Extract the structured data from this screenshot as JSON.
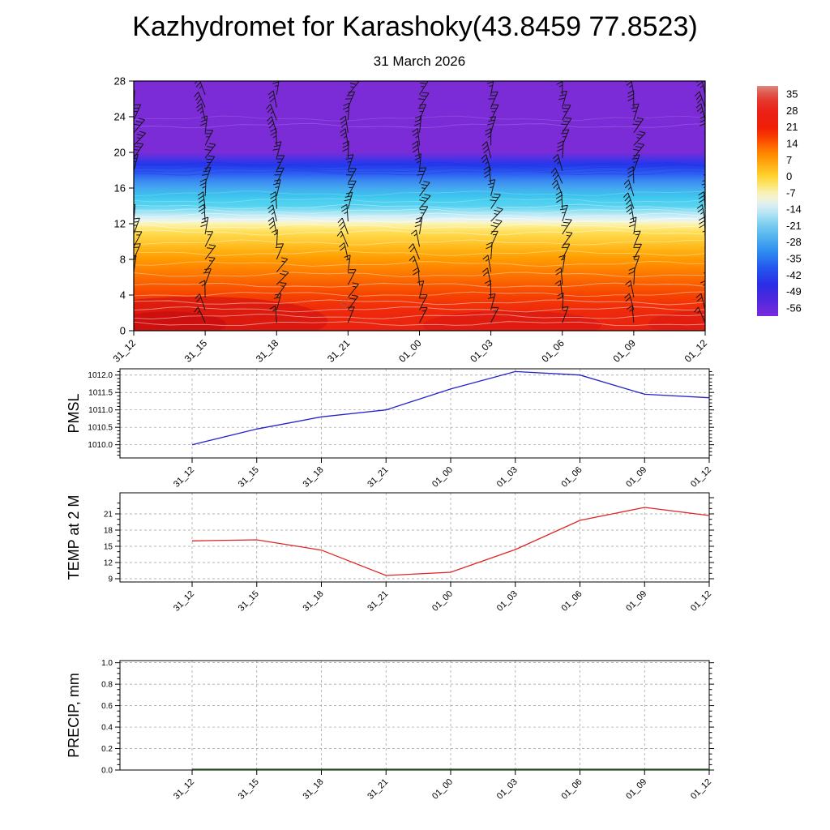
{
  "title": "Kazhydromet for Karashoky(43.8459 77.8523)",
  "subtitle": "31 March 2026",
  "time_labels": [
    "31_12",
    "31_15",
    "31_18",
    "31_21",
    "01_00",
    "01_03",
    "01_06",
    "01_09",
    "01_12"
  ],
  "chart_data": [
    {
      "type": "heatmap",
      "name": "temperature-height-cross-section",
      "subtitle": "31 March 2026",
      "x_categories": [
        "31_12",
        "31_15",
        "31_18",
        "31_21",
        "01_00",
        "01_03",
        "01_06",
        "01_09",
        "01_12"
      ],
      "y_ticks": [
        0,
        4,
        8,
        12,
        16,
        20,
        24,
        28
      ],
      "ylim": [
        0,
        28
      ],
      "overlay": "wind-barb columns at each time step, westerly flow",
      "profile_heights_km": [
        0,
        2,
        4,
        6,
        8,
        10,
        12,
        13,
        14,
        16,
        18,
        19,
        20,
        28
      ],
      "profile_temps_c": [
        27,
        23,
        17,
        11,
        5,
        -2,
        -8,
        -13,
        -18,
        -28,
        -42,
        -50,
        -56,
        -56
      ],
      "gradient_stops": [
        [
          0,
          "#7B2CD6"
        ],
        [
          0.284,
          "#7B2CD6"
        ],
        [
          0.301,
          "#5F30DE"
        ],
        [
          0.318,
          "#3C34E8"
        ],
        [
          0.336,
          "#2438EC"
        ],
        [
          0.356,
          "#2A52F0"
        ],
        [
          0.375,
          "#2E62F2"
        ],
        [
          0.393,
          "#3780F2"
        ],
        [
          0.411,
          "#3F96F1"
        ],
        [
          0.429,
          "#45A8F0"
        ],
        [
          0.447,
          "#3FBAEE"
        ],
        [
          0.464,
          "#3EC6EE"
        ],
        [
          0.482,
          "#4CD0F0"
        ],
        [
          0.5,
          "#55D2F0"
        ],
        [
          0.518,
          "#8ADFF2"
        ],
        [
          0.536,
          "#BEEAF5"
        ],
        [
          0.55,
          "#DDF2F7"
        ],
        [
          0.564,
          "#F4F5DC"
        ],
        [
          0.572,
          "#FCF4AE"
        ],
        [
          0.589,
          "#FEE97E"
        ],
        [
          0.607,
          "#FFDD52"
        ],
        [
          0.643,
          "#FFC830"
        ],
        [
          0.679,
          "#FFB112"
        ],
        [
          0.714,
          "#FF9A00"
        ],
        [
          0.75,
          "#FF8500"
        ],
        [
          0.786,
          "#FC6F00"
        ],
        [
          0.821,
          "#F95800"
        ],
        [
          0.857,
          "#F64400"
        ],
        [
          0.893,
          "#F23208"
        ],
        [
          0.929,
          "#EE280C"
        ],
        [
          1,
          "#E9220F"
        ]
      ],
      "colorbar": {
        "ticks": [
          35,
          28,
          21,
          14,
          7,
          0,
          -7,
          -14,
          -21,
          -28,
          -35,
          -42,
          -49,
          -56
        ],
        "value_top": 38.5,
        "value_span": 98,
        "gradient_stops": [
          [
            0,
            "#D98A80"
          ],
          [
            0.03,
            "#DF5A50"
          ],
          [
            0.06,
            "#E53B30"
          ],
          [
            0.11,
            "#EA2117"
          ],
          [
            0.18,
            "#F01E08"
          ],
          [
            0.23,
            "#FA4500"
          ],
          [
            0.27,
            "#FF7000"
          ],
          [
            0.3,
            "#FF8C00"
          ],
          [
            0.34,
            "#FFAC12"
          ],
          [
            0.39,
            "#FFD22E"
          ],
          [
            0.43,
            "#FBE470"
          ],
          [
            0.46,
            "#FAF0AC"
          ],
          [
            0.49,
            "#F0F2D8"
          ],
          [
            0.52,
            "#D8EEF4"
          ],
          [
            0.56,
            "#AEE2F4"
          ],
          [
            0.6,
            "#7CCEF0"
          ],
          [
            0.66,
            "#4FB0EE"
          ],
          [
            0.72,
            "#2E8CF0"
          ],
          [
            0.79,
            "#2456EE"
          ],
          [
            0.86,
            "#2A2EE6"
          ],
          [
            0.92,
            "#4A28DE"
          ],
          [
            1,
            "#7A2BDC"
          ]
        ]
      }
    },
    {
      "type": "line",
      "name": "pmsl",
      "ylabel": "PMSL",
      "x": [
        "31_12",
        "31_15",
        "31_18",
        "31_21",
        "01_00",
        "01_03",
        "01_06",
        "01_09",
        "01_12"
      ],
      "values": [
        1010.0,
        1010.45,
        1010.8,
        1011.0,
        1011.6,
        1012.1,
        1012.0,
        1011.45,
        1011.35
      ],
      "y_ticks": [
        1010.0,
        1010.5,
        1011.0,
        1011.5,
        1012.0
      ],
      "ylim": [
        1009.62,
        1012.18
      ],
      "y_decimals": 1,
      "minor_step": 0.1,
      "major_step": 0.5,
      "color": "#2424cc",
      "grid": "dashed"
    },
    {
      "type": "line",
      "name": "temp-2m",
      "ylabel": "TEMP at 2 M",
      "x": [
        "31_12",
        "31_15",
        "31_18",
        "31_21",
        "01_00",
        "01_03",
        "01_06",
        "01_09",
        "01_12"
      ],
      "values": [
        16.0,
        16.2,
        14.3,
        9.6,
        10.2,
        14.4,
        19.8,
        22.2,
        20.7
      ],
      "y_ticks": [
        9,
        12,
        15,
        18,
        21
      ],
      "ylim": [
        8.4,
        24.9
      ],
      "y_decimals": 0,
      "minor_step": 1,
      "major_step": 3,
      "color": "#dd2525",
      "grid": "dashed"
    },
    {
      "type": "line",
      "name": "precip",
      "ylabel": "PRECIP, mm",
      "x": [
        "31_12",
        "31_15",
        "31_18",
        "31_21",
        "01_00",
        "01_03",
        "01_06",
        "01_09",
        "01_12"
      ],
      "values": [
        0.0,
        0.0,
        0.0,
        0.0,
        0.0,
        0.0,
        0.0,
        0.0,
        0.0
      ],
      "y_ticks": [
        0.0,
        0.2,
        0.4,
        0.6,
        0.8,
        1.0
      ],
      "ylim": [
        0,
        1.02
      ],
      "y_decimals": 1,
      "minor_step": 0.05,
      "major_step": 0.2,
      "color": "#1d4d1d",
      "grid": "dashed"
    }
  ]
}
